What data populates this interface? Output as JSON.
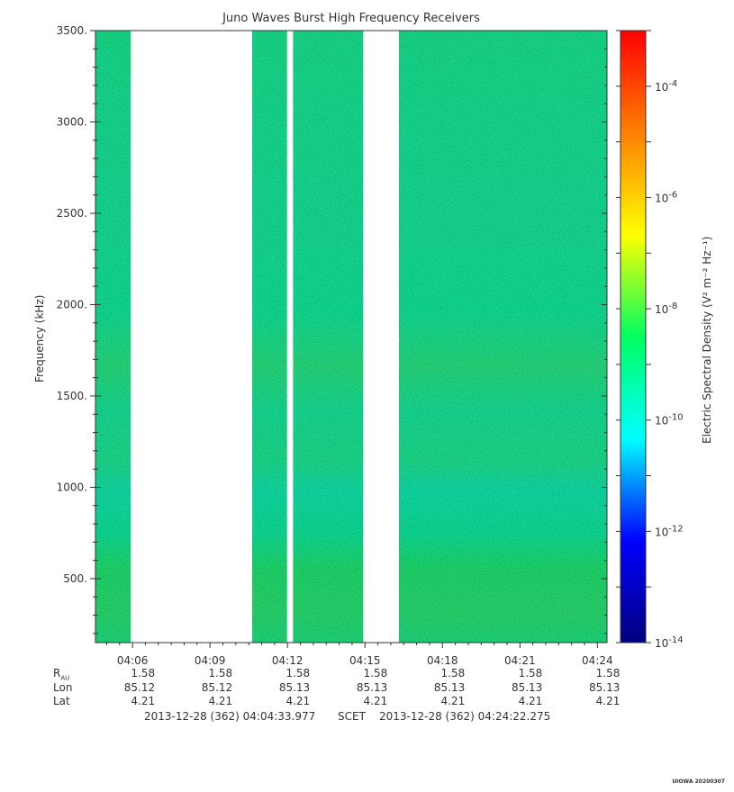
{
  "chart_data": {
    "type": "heatmap",
    "title": "Juno Waves Burst High Frequency Receivers",
    "ylabel": "Frequency (kHz)",
    "ylim": [
      150,
      3500
    ],
    "yticks": [
      500,
      1000,
      1500,
      2000,
      2500,
      3000,
      3500
    ],
    "ytick_labels": [
      "500.",
      "1000.",
      "1500.",
      "2000.",
      "2500.",
      "3000.",
      "3500."
    ],
    "xlim": [
      "04:04:33.977",
      "04:24:22.275"
    ],
    "xticks": [
      "04:06",
      "04:09",
      "04:12",
      "04:15",
      "04:18",
      "04:21",
      "04:24"
    ],
    "data_intervals": [
      [
        "04:04:33",
        "04:05:56"
      ],
      [
        "04:10:38",
        "04:11:59"
      ],
      [
        "04:12:13",
        "04:14:56"
      ],
      [
        "04:16:19",
        "04:24:22"
      ]
    ],
    "colorbar": {
      "label": "Electric Spectral Density (V² m⁻² Hz⁻¹)",
      "scale": "log",
      "range": [
        1e-14,
        0.001
      ],
      "ticks": [
        "10",
        "10",
        "10",
        "10",
        "10",
        "10"
      ],
      "tick_exponents": [
        "-14",
        "-12",
        "-10",
        "-8",
        "-6",
        "-4"
      ],
      "tick_values": [
        -14,
        -12,
        -10,
        -8,
        -6,
        -4
      ],
      "colors": [
        "#000080",
        "#0000ff",
        "#00ffff",
        "#00ff60",
        "#ffff00",
        "#ff8000",
        "#ff0000"
      ]
    },
    "typical_level": "between 10^-11 and 10^-9"
  },
  "ephemeris": {
    "labels": [
      "R",
      "AU",
      "Lon",
      "Lat"
    ],
    "rau": [
      "1.58",
      "1.58",
      "1.58",
      "1.58",
      "1.58",
      "1.58",
      "1.58"
    ],
    "lon": [
      "85.12",
      "85.12",
      "85.13",
      "85.13",
      "85.13",
      "85.13",
      "85.13"
    ],
    "lat": [
      "4.21",
      "4.21",
      "4.21",
      "4.21",
      "4.21",
      "4.21",
      "4.21"
    ]
  },
  "footer": {
    "start": "2013-12-28 (362) 04:04:33.977",
    "frame": "SCET",
    "end": "2013-12-28 (362) 04:24:22.275"
  },
  "credit": "UIOWA 20200307"
}
